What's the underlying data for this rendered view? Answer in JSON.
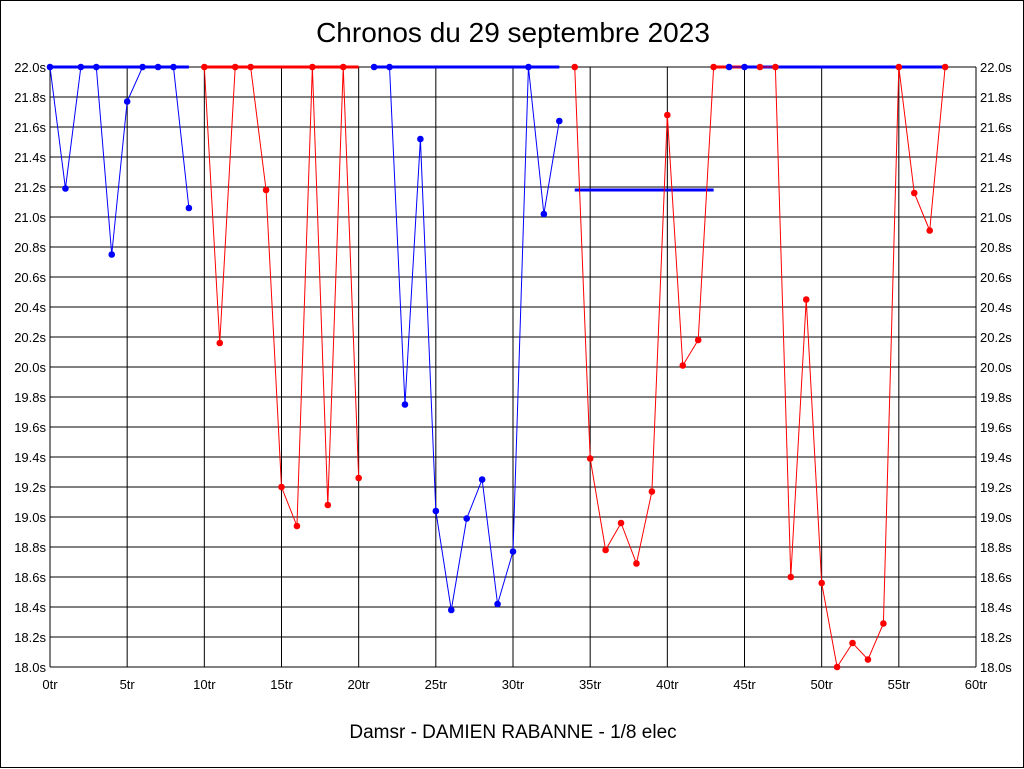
{
  "chart_data": {
    "type": "line",
    "title": "Chronos du 29 septembre 2023",
    "footer": "Damsr - DAMIEN RABANNE - 1/8 elec",
    "xlabel": "",
    "ylabel": "",
    "xlim": [
      0,
      60
    ],
    "ylim": [
      18.0,
      22.0
    ],
    "x_ticks": [
      {
        "value": 0,
        "label": "0tr"
      },
      {
        "value": 5,
        "label": "5tr"
      },
      {
        "value": 10,
        "label": "10tr"
      },
      {
        "value": 15,
        "label": "15tr"
      },
      {
        "value": 20,
        "label": "20tr"
      },
      {
        "value": 25,
        "label": "25tr"
      },
      {
        "value": 30,
        "label": "30tr"
      },
      {
        "value": 35,
        "label": "35tr"
      },
      {
        "value": 40,
        "label": "40tr"
      },
      {
        "value": 45,
        "label": "45tr"
      },
      {
        "value": 50,
        "label": "50tr"
      },
      {
        "value": 55,
        "label": "55tr"
      },
      {
        "value": 60,
        "label": "60tr"
      }
    ],
    "y_ticks": [
      {
        "value": 22.0,
        "label": "22.0s"
      },
      {
        "value": 21.8,
        "label": "21.8s"
      },
      {
        "value": 21.6,
        "label": "21.6s"
      },
      {
        "value": 21.4,
        "label": "21.4s"
      },
      {
        "value": 21.2,
        "label": "21.2s"
      },
      {
        "value": 21.0,
        "label": "21.0s"
      },
      {
        "value": 20.8,
        "label": "20.8s"
      },
      {
        "value": 20.6,
        "label": "20.6s"
      },
      {
        "value": 20.4,
        "label": "20.4s"
      },
      {
        "value": 20.2,
        "label": "20.2s"
      },
      {
        "value": 20.0,
        "label": "20.0s"
      },
      {
        "value": 19.8,
        "label": "19.8s"
      },
      {
        "value": 19.6,
        "label": "19.6s"
      },
      {
        "value": 19.4,
        "label": "19.4s"
      },
      {
        "value": 19.2,
        "label": "19.2s"
      },
      {
        "value": 19.0,
        "label": "19.0s"
      },
      {
        "value": 18.8,
        "label": "18.8s"
      },
      {
        "value": 18.6,
        "label": "18.6s"
      },
      {
        "value": 18.4,
        "label": "18.4s"
      },
      {
        "value": 18.2,
        "label": "18.2s"
      },
      {
        "value": 18.0,
        "label": "18.0s"
      }
    ],
    "grid": true,
    "y_labels_both_sides": true,
    "series": [
      {
        "color": "#0000ff",
        "points": [
          [
            0,
            22.0
          ],
          [
            1,
            21.19
          ],
          [
            2,
            22.0
          ],
          [
            3,
            22.0
          ],
          [
            4,
            20.75
          ],
          [
            5,
            21.77
          ],
          [
            6,
            22.0
          ],
          [
            7,
            22.0
          ],
          [
            8,
            22.0
          ],
          [
            9,
            21.06
          ]
        ],
        "reference_value": 22.0,
        "reference_x": [
          0,
          9
        ]
      },
      {
        "color": "#ff0000",
        "points": [
          [
            10,
            22.0
          ],
          [
            11,
            20.16
          ],
          [
            12,
            22.0
          ],
          [
            13,
            22.0
          ],
          [
            14,
            21.18
          ],
          [
            15,
            19.2
          ],
          [
            16,
            18.94
          ],
          [
            17,
            22.0
          ],
          [
            18,
            19.08
          ],
          [
            19,
            22.0
          ],
          [
            20,
            19.26
          ]
        ],
        "reference_value": 22.0,
        "reference_x": [
          10,
          20
        ]
      },
      {
        "color": "#0000ff",
        "points": [
          [
            21,
            22.0
          ],
          [
            22,
            22.0
          ],
          [
            23,
            19.75
          ],
          [
            24,
            21.52
          ],
          [
            25,
            19.04
          ],
          [
            26,
            18.38
          ],
          [
            27,
            18.99
          ],
          [
            28,
            19.25
          ],
          [
            29,
            18.42
          ],
          [
            30,
            18.77
          ],
          [
            31,
            22.0
          ],
          [
            32,
            21.02
          ],
          [
            33,
            21.64
          ]
        ],
        "reference_value": 22.0,
        "reference_x": [
          21,
          33
        ]
      },
      {
        "color": "#ff0000",
        "points": [
          [
            34,
            22.0
          ],
          [
            35,
            19.39
          ],
          [
            36,
            18.78
          ],
          [
            37,
            18.96
          ],
          [
            38,
            18.69
          ],
          [
            39,
            19.17
          ],
          [
            40,
            21.68
          ],
          [
            41,
            20.01
          ],
          [
            42,
            20.18
          ],
          [
            43,
            22.0
          ]
        ],
        "reference_value": 21.18,
        "reference_x": [
          34,
          43
        ],
        "reference_color": "#0000ff"
      },
      {
        "color": "#0000ff",
        "points": [
          [
            44,
            22.0
          ],
          [
            45,
            22.0
          ]
        ],
        "reference_value": 22.0,
        "reference_x": [
          43,
          45
        ],
        "reference_color": "#ff0000"
      },
      {
        "color": "#ff0000",
        "points": [
          [
            46,
            22.0
          ],
          [
            47,
            22.0
          ],
          [
            48,
            18.6
          ],
          [
            49,
            20.45
          ],
          [
            50,
            18.56
          ],
          [
            51,
            18.0
          ],
          [
            52,
            18.16
          ],
          [
            53,
            18.05
          ],
          [
            54,
            18.29
          ],
          [
            55,
            22.0
          ],
          [
            56,
            21.16
          ],
          [
            57,
            20.91
          ],
          [
            58,
            22.0
          ]
        ],
        "reference_value": 22.0,
        "reference_x": [
          45,
          58
        ],
        "reference_color": "#0000ff"
      }
    ]
  }
}
